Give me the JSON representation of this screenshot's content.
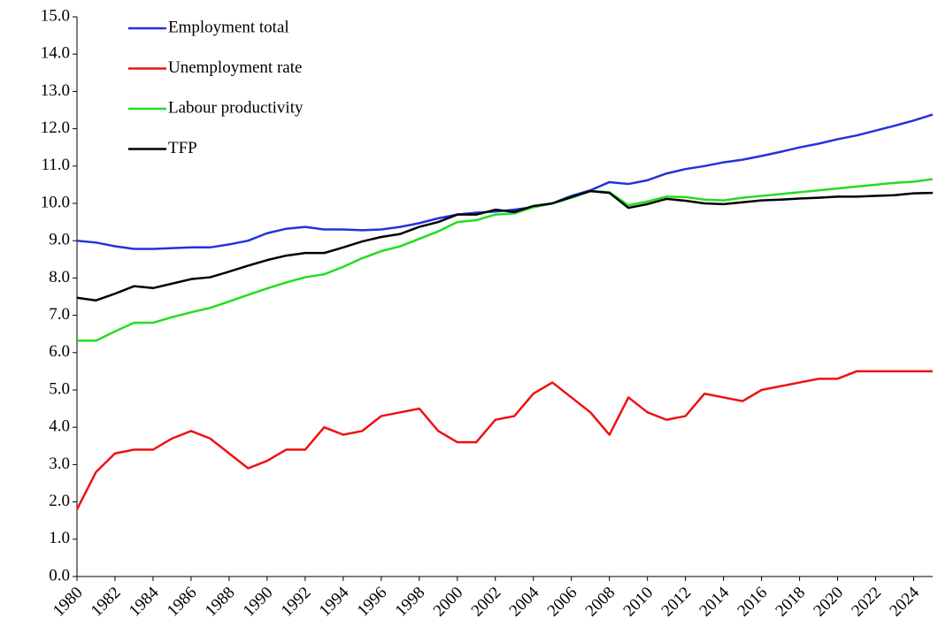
{
  "chart_data": {
    "type": "line",
    "x": [
      1980,
      1981,
      1982,
      1983,
      1984,
      1985,
      1986,
      1987,
      1988,
      1989,
      1990,
      1991,
      1992,
      1993,
      1994,
      1995,
      1996,
      1997,
      1998,
      1999,
      2000,
      2001,
      2002,
      2003,
      2004,
      2005,
      2006,
      2007,
      2008,
      2009,
      2010,
      2011,
      2012,
      2013,
      2014,
      2015,
      2016,
      2017,
      2018,
      2019,
      2020,
      2021,
      2022,
      2023,
      2024,
      2025
    ],
    "xlim": [
      1980,
      2025
    ],
    "xticks": [
      1980,
      1982,
      1984,
      1986,
      1988,
      1990,
      1992,
      1994,
      1996,
      1998,
      2000,
      2002,
      2004,
      2006,
      2008,
      2010,
      2012,
      2014,
      2016,
      2018,
      2020,
      2022,
      2024
    ],
    "ylim": [
      0,
      15
    ],
    "yticks": [
      {
        "value": 0,
        "label": "0.0"
      },
      {
        "value": 1,
        "label": "1.0"
      },
      {
        "value": 2,
        "label": "2.0"
      },
      {
        "value": 3,
        "label": "3.0"
      },
      {
        "value": 4,
        "label": "4.0"
      },
      {
        "value": 5,
        "label": "5.0"
      },
      {
        "value": 6,
        "label": "6.0"
      },
      {
        "value": 7,
        "label": "7.0"
      },
      {
        "value": 8,
        "label": "8.0"
      },
      {
        "value": 9,
        "label": "9.0"
      },
      {
        "value": 10,
        "label": "10.0"
      },
      {
        "value": 11,
        "label": "11.0"
      },
      {
        "value": 12,
        "label": "12.0"
      },
      {
        "value": 13,
        "label": "13.0"
      },
      {
        "value": 14,
        "label": "14.0"
      },
      {
        "value": 15,
        "label": "15.0"
      }
    ],
    "grid": false,
    "legend": "upper left",
    "series": [
      {
        "name": "Employment total",
        "color": "#2233dd",
        "values": [
          9.0,
          8.95,
          8.85,
          8.78,
          8.78,
          8.8,
          8.82,
          8.82,
          8.9,
          9.0,
          9.2,
          9.32,
          9.37,
          9.3,
          9.3,
          9.28,
          9.3,
          9.37,
          9.47,
          9.6,
          9.7,
          9.75,
          9.78,
          9.83,
          9.9,
          10.0,
          10.2,
          10.35,
          10.57,
          10.52,
          10.62,
          10.8,
          10.92,
          11.0,
          11.1,
          11.17,
          11.27,
          11.38,
          11.5,
          11.6,
          11.72,
          11.82,
          11.95,
          12.08,
          12.22,
          12.38
        ]
      },
      {
        "name": "Unemployment rate",
        "color": "#ee1111",
        "values": [
          1.8,
          2.8,
          3.3,
          3.4,
          3.4,
          3.7,
          3.9,
          3.7,
          3.3,
          2.9,
          3.1,
          3.4,
          3.4,
          4.0,
          3.8,
          3.9,
          4.3,
          4.4,
          4.5,
          3.9,
          3.6,
          3.6,
          4.2,
          4.3,
          4.9,
          5.2,
          4.8,
          4.4,
          3.8,
          4.8,
          4.4,
          4.2,
          4.3,
          4.9,
          4.8,
          4.7,
          5.0,
          5.1,
          5.2,
          5.3,
          5.3,
          5.5,
          5.5,
          5.5,
          5.5,
          5.5
        ]
      },
      {
        "name": "Labour productivity",
        "color": "#22dd22",
        "values": [
          6.32,
          6.32,
          6.57,
          6.8,
          6.8,
          6.95,
          7.08,
          7.2,
          7.37,
          7.55,
          7.72,
          7.88,
          8.02,
          8.1,
          8.3,
          8.53,
          8.72,
          8.85,
          9.05,
          9.25,
          9.5,
          9.55,
          9.7,
          9.73,
          9.9,
          10.0,
          10.15,
          10.33,
          10.3,
          9.95,
          10.05,
          10.18,
          10.17,
          10.1,
          10.08,
          10.15,
          10.2,
          10.25,
          10.3,
          10.35,
          10.4,
          10.45,
          10.5,
          10.55,
          10.58,
          10.65
        ]
      },
      {
        "name": "TFP",
        "color": "#000000",
        "values": [
          7.47,
          7.4,
          7.58,
          7.78,
          7.73,
          7.85,
          7.97,
          8.02,
          8.17,
          8.33,
          8.48,
          8.6,
          8.67,
          8.67,
          8.82,
          8.98,
          9.1,
          9.18,
          9.37,
          9.5,
          9.7,
          9.7,
          9.83,
          9.77,
          9.93,
          10.0,
          10.17,
          10.33,
          10.28,
          9.88,
          9.98,
          10.12,
          10.07,
          10.0,
          9.98,
          10.03,
          10.08,
          10.1,
          10.13,
          10.15,
          10.18,
          10.18,
          10.2,
          10.22,
          10.27,
          10.28
        ]
      }
    ]
  }
}
